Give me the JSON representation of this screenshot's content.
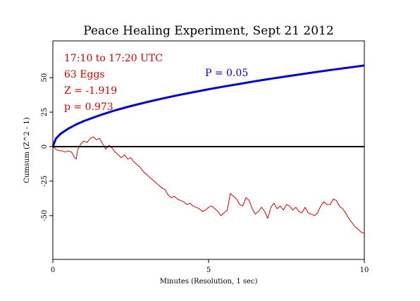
{
  "chart_data": {
    "type": "line",
    "title": "Peace Healing Experiment, Sept 21 2012",
    "xlabel": "Minutes (Resolution, 1 sec)",
    "ylabel": "Cumsum (Z^2 - 1)",
    "xlim": [
      0,
      10
    ],
    "ylim": [
      -70,
      70
    ],
    "x_ticks": [
      0,
      5,
      10
    ],
    "y_ticks": [
      -50,
      -25,
      0,
      25,
      50
    ],
    "grid": false,
    "annotations": {
      "time_range": "17:10 to 17:20 UTC",
      "eggs": "63 Eggs",
      "z": "Z = -1.919",
      "p": "p = 0.973",
      "envelope_label": "P = 0.05"
    },
    "series": [
      {
        "name": "",
        "color": "#0000cc",
        "x": [
          0,
          0.1,
          0.25,
          0.5,
          0.75,
          1,
          1.5,
          2,
          2.5,
          3,
          3.5,
          4,
          4.5,
          5,
          5.5,
          6,
          6.5,
          7,
          7.5,
          8,
          8.5,
          9,
          9.5,
          10
        ],
        "y": [
          0,
          5.9,
          9.3,
          13.1,
          16.1,
          18.6,
          22.7,
          26.3,
          29.4,
          32.2,
          34.8,
          37.2,
          39.4,
          41.6,
          43.6,
          45.5,
          47.4,
          49.2,
          50.9,
          52.6,
          54.2,
          55.8,
          57.3,
          58.8
        ]
      },
      {
        "name": "",
        "color": "#cc0000",
        "x": [
          0,
          0.1,
          0.2,
          0.3,
          0.4,
          0.5,
          0.6,
          0.7,
          0.75,
          0.8,
          0.9,
          1.0,
          1.1,
          1.2,
          1.3,
          1.4,
          1.5,
          1.6,
          1.7,
          1.8,
          1.9,
          2.0,
          2.1,
          2.2,
          2.3,
          2.4,
          2.5,
          2.6,
          2.7,
          2.8,
          2.9,
          3.0,
          3.1,
          3.2,
          3.3,
          3.4,
          3.5,
          3.6,
          3.7,
          3.8,
          3.9,
          4.0,
          4.1,
          4.2,
          4.3,
          4.4,
          4.5,
          4.6,
          4.7,
          4.8,
          4.9,
          5.0,
          5.1,
          5.2,
          5.3,
          5.4,
          5.5,
          5.6,
          5.7,
          5.8,
          5.9,
          6.0,
          6.1,
          6.2,
          6.3,
          6.4,
          6.5,
          6.6,
          6.7,
          6.8,
          6.9,
          7.0,
          7.1,
          7.2,
          7.3,
          7.4,
          7.5,
          7.6,
          7.7,
          7.8,
          7.9,
          8.0,
          8.1,
          8.2,
          8.3,
          8.4,
          8.5,
          8.6,
          8.7,
          8.8,
          8.9,
          9.0,
          9.1,
          9.2,
          9.3,
          9.4,
          9.5,
          9.6,
          9.7,
          9.8,
          9.9,
          10.0
        ],
        "y": [
          0,
          -2,
          -3,
          -3,
          -4,
          -3,
          -4,
          -8,
          -9,
          -2,
          2,
          4,
          3,
          6,
          7,
          5,
          6,
          2,
          -2,
          1,
          -1,
          -4,
          -6,
          -8,
          -6,
          -9,
          -8,
          -11,
          -13,
          -15,
          -18,
          -20,
          -22,
          -24,
          -26,
          -28,
          -30,
          -31,
          -35,
          -37,
          -36,
          -38,
          -39,
          -40,
          -42,
          -41,
          -43,
          -44,
          -45,
          -47,
          -46,
          -44,
          -43,
          -45,
          -47,
          -50,
          -48,
          -46,
          -34,
          -36,
          -38,
          -42,
          -43,
          -37,
          -39,
          -45,
          -49,
          -47,
          -44,
          -47,
          -52,
          -44,
          -41,
          -45,
          -43,
          -46,
          -42,
          -43,
          -46,
          -44,
          -47,
          -48,
          -44,
          -48,
          -49,
          -50,
          -48,
          -43,
          -40,
          -42,
          -42,
          -38,
          -39,
          -43,
          -45,
          -48,
          -52,
          -55,
          -58,
          -60,
          -62,
          -63
        ]
      },
      {
        "name": "",
        "color": "#000000",
        "x": [
          0,
          10
        ],
        "y": [
          0,
          0
        ]
      }
    ]
  }
}
